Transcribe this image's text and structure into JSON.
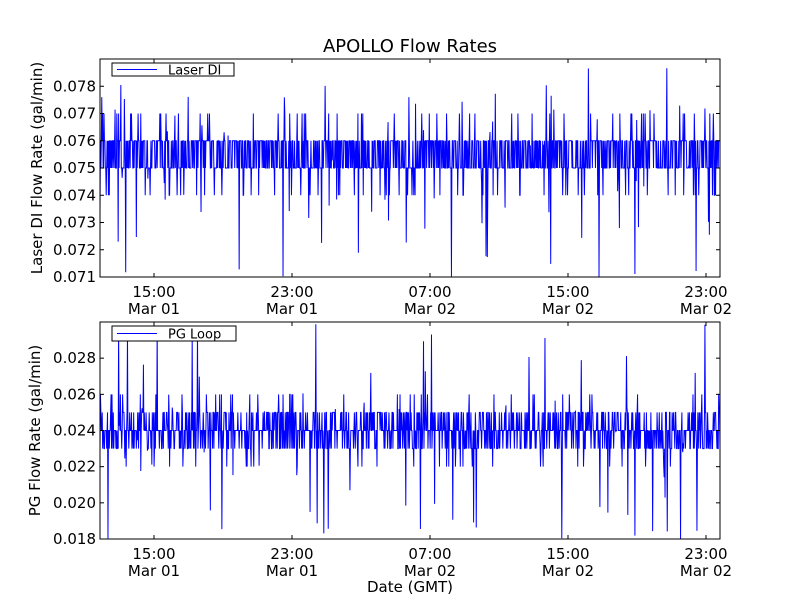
{
  "chart_data": [
    {
      "type": "line",
      "title": "APOLLO Flow Rates",
      "ylabel": "Laser DI Flow Rate (gal/min)",
      "xlabel": "",
      "legend": {
        "placement": "top-left",
        "entries": [
          "Laser DI"
        ]
      },
      "grid": false,
      "ylim": [
        0.071,
        0.079
      ],
      "xlim": [
        "2011-03-01 11:50",
        "2011-03-02 23:40"
      ],
      "x_ticks": [
        {
          "time": "15:00",
          "date": "Mar 01"
        },
        {
          "time": "23:00",
          "date": "Mar 01"
        },
        {
          "time": "07:00",
          "date": "Mar 02"
        },
        {
          "time": "15:00",
          "date": "Mar 02"
        },
        {
          "time": "23:00",
          "date": "Mar 02"
        }
      ],
      "y_ticks": [
        "0.071",
        "0.072",
        "0.073",
        "0.074",
        "0.075",
        "0.076",
        "0.077",
        "0.078"
      ],
      "series": [
        {
          "name": "Laser DI",
          "color": "#0000ff",
          "baseline": 0.0755,
          "band": [
            0.075,
            0.076
          ],
          "typical_spread": [
            0.074,
            0.077
          ],
          "excursion_range": [
            0.071,
            0.079
          ]
        }
      ]
    },
    {
      "type": "line",
      "title": "",
      "ylabel": "PG Flow Rate (gal/min)",
      "xlabel": "Date (GMT)",
      "legend": {
        "placement": "top-left",
        "entries": [
          "PG Loop"
        ]
      },
      "grid": false,
      "ylim": [
        0.018,
        0.03
      ],
      "xlim": [
        "2011-03-01 11:50",
        "2011-03-02 23:40"
      ],
      "x_ticks": [
        {
          "time": "15:00",
          "date": "Mar 01"
        },
        {
          "time": "23:00",
          "date": "Mar 01"
        },
        {
          "time": "07:00",
          "date": "Mar 02"
        },
        {
          "time": "15:00",
          "date": "Mar 02"
        },
        {
          "time": "23:00",
          "date": "Mar 02"
        }
      ],
      "y_ticks": [
        "0.018",
        "0.020",
        "0.022",
        "0.024",
        "0.026",
        "0.028"
      ],
      "series": [
        {
          "name": "PG Loop",
          "color": "#0000ff",
          "baseline": 0.024,
          "band": [
            0.023,
            0.025
          ],
          "typical_spread": [
            0.022,
            0.026
          ],
          "excursion_range": [
            0.018,
            0.03
          ]
        }
      ]
    }
  ]
}
